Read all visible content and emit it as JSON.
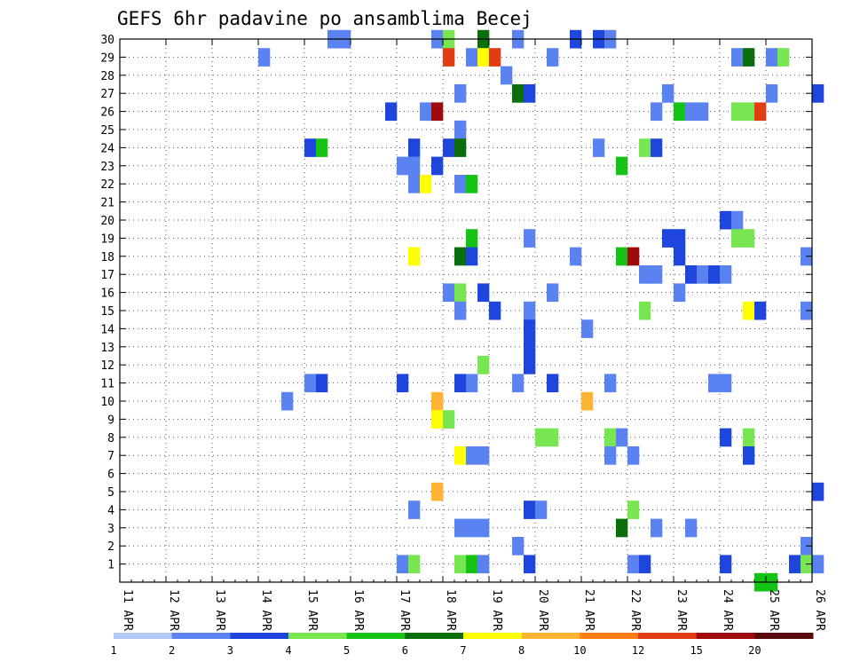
{
  "chart_data": {
    "type": "heatmap",
    "title": "GEFS 6hr padavine po ansamblima Becej",
    "y_labels": [
      "1",
      "2",
      "3",
      "4",
      "5",
      "6",
      "7",
      "8",
      "9",
      "10",
      "11",
      "12",
      "13",
      "14",
      "15",
      "16",
      "17",
      "18",
      "19",
      "20",
      "21",
      "22",
      "23",
      "24",
      "25",
      "26",
      "27",
      "28",
      "29",
      "30"
    ],
    "x_labels": [
      "11 APR",
      "12 APR",
      "13 APR",
      "14 APR",
      "15 APR",
      "16 APR",
      "17 APR",
      "18 APR",
      "19 APR",
      "20 APR",
      "21 APR",
      "22 APR",
      "23 APR",
      "24 APR",
      "25 APR",
      "26 APR"
    ],
    "x_range_days": [
      0,
      15
    ],
    "y_range": [
      0,
      30
    ],
    "grid": true,
    "legend": {
      "placement": "bottom",
      "bounds": [
        "1",
        "2",
        "3",
        "4",
        "5",
        "6",
        "7",
        "8",
        "10",
        "12",
        "15",
        "20"
      ],
      "colors": [
        "#b4c8f8",
        "#5a82f0",
        "#1e46dc",
        "#78e650",
        "#14c314",
        "#0a6e0a",
        "#ffff00",
        "#ffb432",
        "#ff7d14",
        "#e13c14",
        "#a00a0a",
        "#5a0a0a"
      ]
    },
    "cells": [
      [
        4.5,
        30,
        1
      ],
      [
        4.75,
        30,
        1
      ],
      [
        6.75,
        30,
        1
      ],
      [
        7.0,
        30,
        3
      ],
      [
        7.75,
        30,
        5
      ],
      [
        8.5,
        30,
        1
      ],
      [
        9.75,
        30,
        2
      ],
      [
        10.25,
        30,
        2
      ],
      [
        10.5,
        30,
        1
      ],
      [
        3.0,
        29,
        1
      ],
      [
        7.0,
        29,
        9
      ],
      [
        7.5,
        29,
        1
      ],
      [
        7.75,
        29,
        6
      ],
      [
        8.0,
        29,
        9
      ],
      [
        9.25,
        29,
        1
      ],
      [
        13.25,
        29,
        1
      ],
      [
        13.5,
        29,
        5
      ],
      [
        14.0,
        29,
        1
      ],
      [
        14.25,
        29,
        3
      ],
      [
        8.25,
        28,
        1
      ],
      [
        7.25,
        27,
        1
      ],
      [
        8.5,
        27,
        5
      ],
      [
        8.75,
        27,
        2
      ],
      [
        11.75,
        27,
        1
      ],
      [
        14.0,
        27,
        1
      ],
      [
        15.0,
        27,
        2
      ],
      [
        5.75,
        26,
        2
      ],
      [
        6.5,
        26,
        1
      ],
      [
        6.75,
        26,
        10
      ],
      [
        11.5,
        26,
        1
      ],
      [
        12.0,
        26,
        4
      ],
      [
        12.25,
        26,
        1
      ],
      [
        12.5,
        26,
        1
      ],
      [
        13.25,
        26,
        3
      ],
      [
        13.5,
        26,
        3
      ],
      [
        13.75,
        26,
        9
      ],
      [
        7.25,
        25,
        1
      ],
      [
        4.0,
        24,
        2
      ],
      [
        4.25,
        24,
        4
      ],
      [
        6.25,
        24,
        2
      ],
      [
        7.0,
        24,
        2
      ],
      [
        7.25,
        24,
        5
      ],
      [
        10.25,
        24,
        1
      ],
      [
        11.25,
        24,
        3
      ],
      [
        11.5,
        24,
        2
      ],
      [
        6.0,
        23,
        1
      ],
      [
        6.25,
        23,
        1
      ],
      [
        6.75,
        23,
        2
      ],
      [
        10.75,
        23,
        4
      ],
      [
        6.25,
        22,
        1
      ],
      [
        6.5,
        22,
        6
      ],
      [
        7.25,
        22,
        1
      ],
      [
        7.5,
        22,
        4
      ],
      [
        13.0,
        20,
        2
      ],
      [
        13.25,
        20,
        1
      ],
      [
        7.5,
        19,
        4
      ],
      [
        8.75,
        19,
        1
      ],
      [
        11.75,
        19,
        2
      ],
      [
        12.0,
        19,
        2
      ],
      [
        13.25,
        19,
        3
      ],
      [
        13.5,
        19,
        3
      ],
      [
        6.25,
        18,
        6
      ],
      [
        7.25,
        18,
        5
      ],
      [
        7.5,
        18,
        2
      ],
      [
        9.75,
        18,
        1
      ],
      [
        10.75,
        18,
        4
      ],
      [
        11.0,
        18,
        10
      ],
      [
        12.0,
        18,
        2
      ],
      [
        14.75,
        18,
        1
      ],
      [
        11.25,
        17,
        1
      ],
      [
        11.5,
        17,
        1
      ],
      [
        12.25,
        17,
        2
      ],
      [
        12.5,
        17,
        1
      ],
      [
        12.75,
        17,
        2
      ],
      [
        13.0,
        17,
        1
      ],
      [
        7.0,
        16,
        1
      ],
      [
        7.25,
        16,
        3
      ],
      [
        7.75,
        16,
        2
      ],
      [
        9.25,
        16,
        1
      ],
      [
        12.0,
        16,
        1
      ],
      [
        7.25,
        15,
        1
      ],
      [
        8.0,
        15,
        2
      ],
      [
        8.75,
        15,
        1
      ],
      [
        11.25,
        15,
        3
      ],
      [
        13.5,
        15,
        6
      ],
      [
        13.75,
        15,
        2
      ],
      [
        14.75,
        15,
        1
      ],
      [
        8.75,
        14,
        2
      ],
      [
        10.0,
        14,
        1
      ],
      [
        8.75,
        13,
        2
      ],
      [
        7.75,
        12,
        3
      ],
      [
        8.75,
        12,
        2
      ],
      [
        4.0,
        11,
        1
      ],
      [
        4.25,
        11,
        2
      ],
      [
        6.0,
        11,
        2
      ],
      [
        7.25,
        11,
        2
      ],
      [
        7.5,
        11,
        1
      ],
      [
        8.5,
        11,
        1
      ],
      [
        9.25,
        11,
        2
      ],
      [
        10.5,
        11,
        1
      ],
      [
        12.75,
        11,
        1
      ],
      [
        13.0,
        11,
        1
      ],
      [
        3.5,
        10,
        1
      ],
      [
        6.75,
        10,
        7
      ],
      [
        10.0,
        10,
        7
      ],
      [
        6.75,
        9,
        6
      ],
      [
        7.0,
        9,
        3
      ],
      [
        9.0,
        8,
        3
      ],
      [
        9.25,
        8,
        3
      ],
      [
        10.5,
        8,
        3
      ],
      [
        10.75,
        8,
        1
      ],
      [
        13.0,
        8,
        2
      ],
      [
        13.5,
        8,
        3
      ],
      [
        7.25,
        7,
        6
      ],
      [
        7.5,
        7,
        1
      ],
      [
        7.75,
        7,
        1
      ],
      [
        10.5,
        7,
        1
      ],
      [
        11.0,
        7,
        1
      ],
      [
        13.5,
        7,
        2
      ],
      [
        6.75,
        5,
        7
      ],
      [
        15.0,
        5,
        2
      ],
      [
        6.25,
        4,
        1
      ],
      [
        8.75,
        4,
        2
      ],
      [
        9.0,
        4,
        1
      ],
      [
        11.0,
        4,
        3
      ],
      [
        7.25,
        3,
        1
      ],
      [
        7.5,
        3,
        1
      ],
      [
        7.75,
        3,
        1
      ],
      [
        10.75,
        3,
        5
      ],
      [
        11.5,
        3,
        1
      ],
      [
        12.25,
        3,
        1
      ],
      [
        8.5,
        2,
        1
      ],
      [
        14.75,
        2,
        1
      ],
      [
        6.0,
        1,
        1
      ],
      [
        6.25,
        1,
        3
      ],
      [
        7.25,
        1,
        3
      ],
      [
        7.5,
        1,
        4
      ],
      [
        7.75,
        1,
        1
      ],
      [
        8.75,
        1,
        2
      ],
      [
        11.0,
        1,
        1
      ],
      [
        11.25,
        1,
        2
      ],
      [
        13.0,
        1,
        2
      ],
      [
        14.5,
        1,
        2
      ],
      [
        14.75,
        1,
        3
      ],
      [
        15.0,
        1,
        1
      ],
      [
        13.75,
        0,
        4
      ],
      [
        14.0,
        0,
        4
      ]
    ]
  }
}
